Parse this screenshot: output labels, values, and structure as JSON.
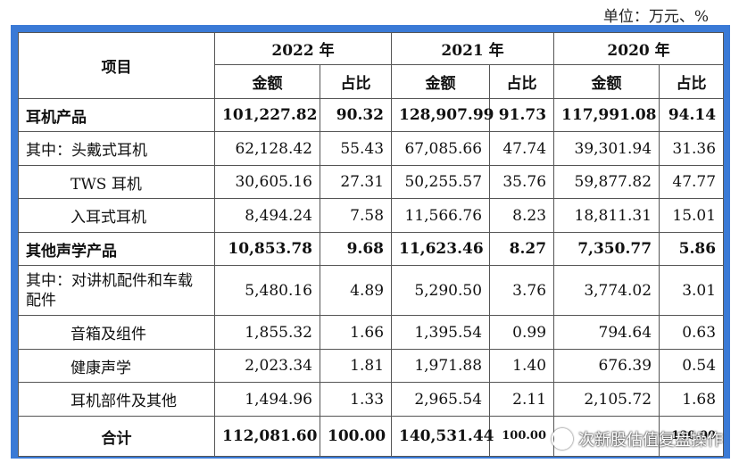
{
  "unit_label": "单位：万元、%",
  "header": {
    "item": "项目",
    "years": [
      "2022 年",
      "2021 年",
      "2020 年"
    ],
    "amount": "金额",
    "ratio": "占比"
  },
  "rows": [
    {
      "label": "耳机产品",
      "v": [
        "101,227.82",
        "90.32",
        "128,907.99",
        "91.73",
        "117,991.08",
        "94.14"
      ]
    },
    {
      "label": "其中：头戴式耳机",
      "v": [
        "62,128.42",
        "55.43",
        "67,085.66",
        "47.74",
        "39,301.94",
        "31.36"
      ]
    },
    {
      "label": "TWS 耳机",
      "v": [
        "30,605.16",
        "27.31",
        "50,255.57",
        "35.76",
        "59,877.82",
        "47.77"
      ]
    },
    {
      "label": "入耳式耳机",
      "v": [
        "8,494.24",
        "7.58",
        "11,566.76",
        "8.23",
        "18,811.31",
        "15.01"
      ]
    },
    {
      "label": "其他声学产品",
      "v": [
        "10,853.78",
        "9.68",
        "11,623.46",
        "8.27",
        "7,350.77",
        "5.86"
      ]
    },
    {
      "label": "其中：对讲机配件和车载配件",
      "v": [
        "5,480.16",
        "4.89",
        "5,290.50",
        "3.76",
        "3,774.02",
        "3.01"
      ]
    },
    {
      "label": "音箱及组件",
      "v": [
        "1,855.32",
        "1.66",
        "1,395.54",
        "0.99",
        "794.64",
        "0.63"
      ]
    },
    {
      "label": "健康声学",
      "v": [
        "2,023.34",
        "1.81",
        "1,971.88",
        "1.40",
        "676.39",
        "0.54"
      ]
    },
    {
      "label": "耳机部件及其他",
      "v": [
        "1,494.96",
        "1.33",
        "2,965.54",
        "2.11",
        "2,105.72",
        "1.68"
      ]
    },
    {
      "label": "合计",
      "v": [
        "112,081.60",
        "100.00",
        "140,531.44",
        "100.00",
        "",
        "100.00"
      ]
    }
  ],
  "watermark": "次新股估值复盘操作"
}
